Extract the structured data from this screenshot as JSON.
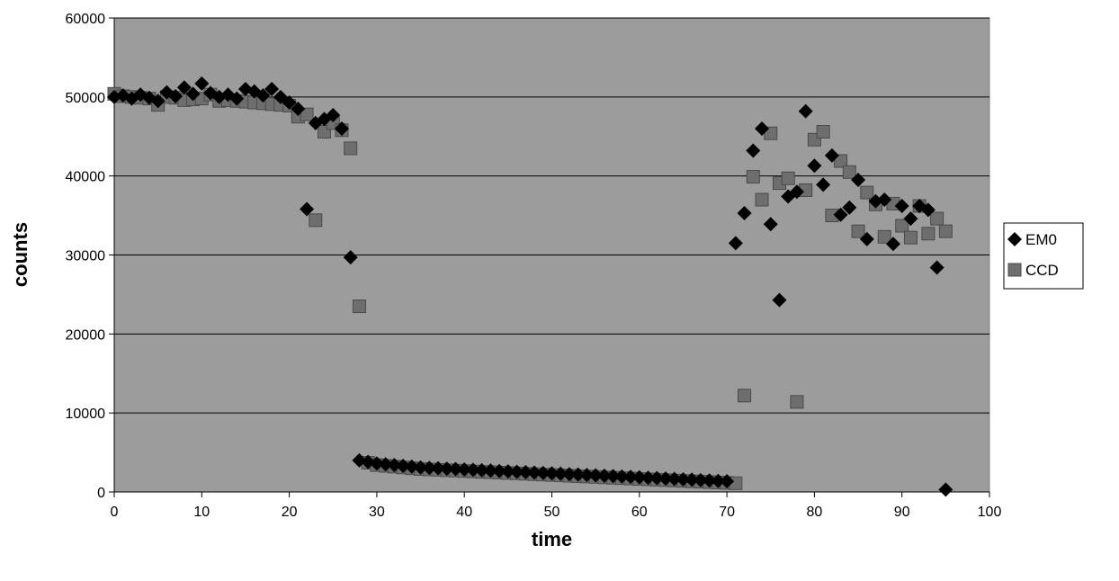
{
  "chart_data": {
    "type": "scatter",
    "title": "",
    "xlabel": "time",
    "ylabel": "counts",
    "xlim": [
      0,
      100
    ],
    "ylim": [
      0,
      60000
    ],
    "x_ticks": [
      0,
      10,
      20,
      30,
      40,
      50,
      60,
      70,
      80,
      90,
      100
    ],
    "y_ticks": [
      0,
      10000,
      20000,
      30000,
      40000,
      50000,
      60000
    ],
    "grid": "horizontal",
    "plot_background": "#9c9c9c",
    "legend_position": "right",
    "series": [
      {
        "name": "EM0",
        "marker": "diamond",
        "color": "#000000",
        "points": [
          [
            0,
            50000
          ],
          [
            1,
            50200
          ],
          [
            2,
            49800
          ],
          [
            3,
            50300
          ],
          [
            4,
            49900
          ],
          [
            5,
            49500
          ],
          [
            6,
            50600
          ],
          [
            7,
            50100
          ],
          [
            8,
            51200
          ],
          [
            9,
            50400
          ],
          [
            10,
            51700
          ],
          [
            11,
            50500
          ],
          [
            12,
            50000
          ],
          [
            13,
            50300
          ],
          [
            14,
            49800
          ],
          [
            15,
            51000
          ],
          [
            16,
            50700
          ],
          [
            17,
            50200
          ],
          [
            18,
            51000
          ],
          [
            19,
            50000
          ],
          [
            20,
            49300
          ],
          [
            21,
            48500
          ],
          [
            22,
            35800
          ],
          [
            23,
            46700
          ],
          [
            24,
            47200
          ],
          [
            25,
            47700
          ],
          [
            26,
            46000
          ],
          [
            27,
            29700
          ],
          [
            28,
            4000
          ],
          [
            29,
            3800
          ],
          [
            30,
            3600
          ],
          [
            31,
            3500
          ],
          [
            32,
            3400
          ],
          [
            33,
            3300
          ],
          [
            34,
            3200
          ],
          [
            35,
            3100
          ],
          [
            36,
            3050
          ],
          [
            37,
            3000
          ],
          [
            38,
            2950
          ],
          [
            39,
            2900
          ],
          [
            40,
            2850
          ],
          [
            41,
            2800
          ],
          [
            42,
            2750
          ],
          [
            43,
            2700
          ],
          [
            44,
            2650
          ],
          [
            45,
            2600
          ],
          [
            46,
            2550
          ],
          [
            47,
            2500
          ],
          [
            48,
            2450
          ],
          [
            49,
            2400
          ],
          [
            50,
            2350
          ],
          [
            51,
            2300
          ],
          [
            52,
            2250
          ],
          [
            53,
            2200
          ],
          [
            54,
            2150
          ],
          [
            55,
            2100
          ],
          [
            56,
            2050
          ],
          [
            57,
            2000
          ],
          [
            58,
            1950
          ],
          [
            59,
            1900
          ],
          [
            60,
            1850
          ],
          [
            61,
            1800
          ],
          [
            62,
            1750
          ],
          [
            63,
            1700
          ],
          [
            64,
            1650
          ],
          [
            65,
            1600
          ],
          [
            66,
            1550
          ],
          [
            67,
            1500
          ],
          [
            68,
            1450
          ],
          [
            69,
            1400
          ],
          [
            70,
            1350
          ],
          [
            71,
            31500
          ],
          [
            72,
            35300
          ],
          [
            73,
            43200
          ],
          [
            74,
            46000
          ],
          [
            75,
            33900
          ],
          [
            76,
            24300
          ],
          [
            77,
            37400
          ],
          [
            78,
            38000
          ],
          [
            79,
            48200
          ],
          [
            80,
            41300
          ],
          [
            81,
            38900
          ],
          [
            82,
            42600
          ],
          [
            83,
            35100
          ],
          [
            84,
            36000
          ],
          [
            85,
            39500
          ],
          [
            86,
            32000
          ],
          [
            87,
            36800
          ],
          [
            88,
            37000
          ],
          [
            89,
            31400
          ],
          [
            90,
            36200
          ],
          [
            91,
            34600
          ],
          [
            92,
            36200
          ],
          [
            93,
            35700
          ],
          [
            94,
            28400
          ],
          [
            95,
            300
          ]
        ]
      },
      {
        "name": "CCD",
        "marker": "square",
        "color": "#6e6e6e",
        "points": [
          [
            0,
            50400
          ],
          [
            1,
            50100
          ],
          [
            2,
            50000
          ],
          [
            3,
            49900
          ],
          [
            4,
            49800
          ],
          [
            5,
            49000
          ],
          [
            6,
            50000
          ],
          [
            7,
            49900
          ],
          [
            8,
            49600
          ],
          [
            9,
            49700
          ],
          [
            10,
            49800
          ],
          [
            11,
            50300
          ],
          [
            12,
            49500
          ],
          [
            13,
            49600
          ],
          [
            14,
            49500
          ],
          [
            15,
            49400
          ],
          [
            16,
            49300
          ],
          [
            17,
            49200
          ],
          [
            18,
            49100
          ],
          [
            19,
            49000
          ],
          [
            20,
            48900
          ],
          [
            21,
            47500
          ],
          [
            22,
            47800
          ],
          [
            23,
            34400
          ],
          [
            24,
            45600
          ],
          [
            25,
            46700
          ],
          [
            26,
            45800
          ],
          [
            27,
            43500
          ],
          [
            28,
            23500
          ],
          [
            29,
            3700
          ],
          [
            30,
            3400
          ],
          [
            31,
            3300
          ],
          [
            32,
            3200
          ],
          [
            33,
            3100
          ],
          [
            34,
            3000
          ],
          [
            35,
            2900
          ],
          [
            36,
            2850
          ],
          [
            37,
            2800
          ],
          [
            38,
            2750
          ],
          [
            39,
            2700
          ],
          [
            40,
            2650
          ],
          [
            41,
            2600
          ],
          [
            42,
            2550
          ],
          [
            43,
            2500
          ],
          [
            44,
            2450
          ],
          [
            45,
            2400
          ],
          [
            46,
            2350
          ],
          [
            47,
            2300
          ],
          [
            48,
            2250
          ],
          [
            49,
            2200
          ],
          [
            50,
            2150
          ],
          [
            51,
            2100
          ],
          [
            52,
            2050
          ],
          [
            53,
            2000
          ],
          [
            54,
            1950
          ],
          [
            55,
            1900
          ],
          [
            56,
            1850
          ],
          [
            57,
            1800
          ],
          [
            58,
            1750
          ],
          [
            59,
            1700
          ],
          [
            60,
            1650
          ],
          [
            61,
            1600
          ],
          [
            62,
            1550
          ],
          [
            63,
            1500
          ],
          [
            64,
            1450
          ],
          [
            65,
            1400
          ],
          [
            66,
            1350
          ],
          [
            67,
            1300
          ],
          [
            68,
            1250
          ],
          [
            69,
            1200
          ],
          [
            70,
            1150
          ],
          [
            71,
            1100
          ],
          [
            72,
            12200
          ],
          [
            73,
            39900
          ],
          [
            74,
            37000
          ],
          [
            75,
            45400
          ],
          [
            76,
            39100
          ],
          [
            77,
            39700
          ],
          [
            78,
            11400
          ],
          [
            79,
            38200
          ],
          [
            80,
            44600
          ],
          [
            81,
            45600
          ],
          [
            82,
            35000
          ],
          [
            83,
            41900
          ],
          [
            84,
            40500
          ],
          [
            85,
            33000
          ],
          [
            86,
            37900
          ],
          [
            87,
            36400
          ],
          [
            88,
            32300
          ],
          [
            89,
            36500
          ],
          [
            90,
            33700
          ],
          [
            91,
            32200
          ],
          [
            92,
            36200
          ],
          [
            93,
            32700
          ],
          [
            94,
            34600
          ],
          [
            95,
            33000
          ]
        ]
      }
    ]
  }
}
